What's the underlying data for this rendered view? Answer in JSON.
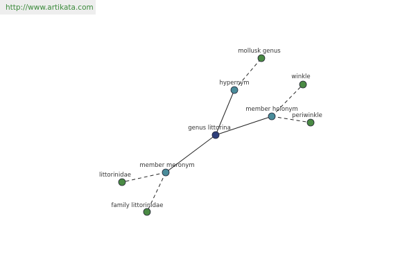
{
  "watermark": "http://www.artikata.com",
  "nodes": [
    {
      "label": "genus littorina"
    },
    {
      "label": "hypernym"
    },
    {
      "label": "mollusk genus"
    },
    {
      "label": "member holonym"
    },
    {
      "label": "winkle"
    },
    {
      "label": "periwinkle"
    },
    {
      "label": "member meronym"
    },
    {
      "label": "littorinidae"
    },
    {
      "label": "family littorinidae"
    }
  ]
}
